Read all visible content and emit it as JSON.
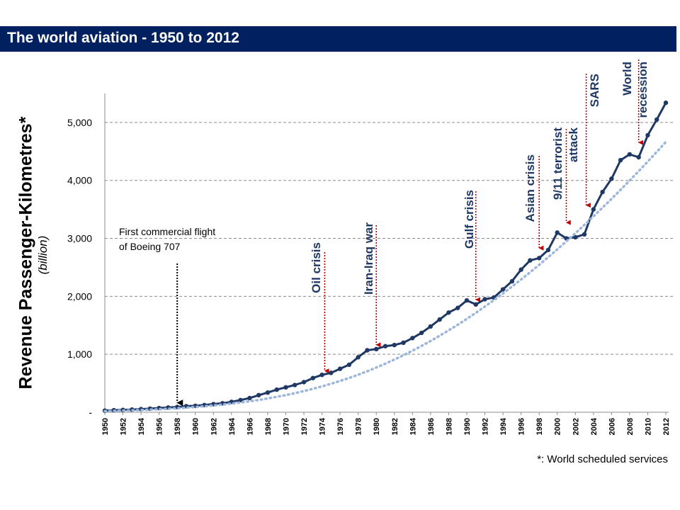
{
  "header": {
    "title": "The world aviation - 1950 to 2012"
  },
  "footnote": "*: World scheduled services",
  "colors": {
    "title_bg": "#002060",
    "title_text": "#ffffff",
    "line": "#1f3864",
    "trend": "#9db6dc",
    "event_arrow": "#c00000",
    "boeing_arrow": "#000000",
    "grid": "#8c8c8c"
  },
  "chart_data": {
    "type": "line",
    "title": "The world aviation - 1950 to 2012",
    "ylabel": "Revenue Passenger-Kilometres*",
    "ylabel_sub": "(billion)",
    "xlabel": "",
    "ylim": [
      0,
      5500
    ],
    "yticks": [
      0,
      1000,
      2000,
      3000,
      4000,
      5000
    ],
    "ytick_labels": [
      "-",
      "1,000",
      "2,000",
      "3,000",
      "4,000",
      "5,000"
    ],
    "x": [
      1950,
      1951,
      1952,
      1953,
      1954,
      1955,
      1956,
      1957,
      1958,
      1959,
      1960,
      1961,
      1962,
      1963,
      1964,
      1965,
      1966,
      1967,
      1968,
      1969,
      1970,
      1971,
      1972,
      1973,
      1974,
      1975,
      1976,
      1977,
      1978,
      1979,
      1980,
      1981,
      1982,
      1983,
      1984,
      1985,
      1986,
      1987,
      1988,
      1989,
      1990,
      1991,
      1992,
      1993,
      1994,
      1995,
      1996,
      1997,
      1998,
      1999,
      2000,
      2001,
      2002,
      2003,
      2004,
      2005,
      2006,
      2007,
      2008,
      2009,
      2010,
      2011,
      2012
    ],
    "xtick_labels": [
      "1950",
      "1952",
      "1954",
      "1956",
      "1958",
      "1960",
      "1962",
      "1964",
      "1966",
      "1968",
      "1970",
      "1972",
      "1974",
      "1976",
      "1978",
      "1980",
      "1982",
      "1984",
      "1986",
      "1988",
      "1990",
      "1992",
      "1994",
      "1996",
      "1998",
      "2000",
      "2002",
      "2004",
      "2006",
      "2008",
      "2010",
      "2012"
    ],
    "series": [
      {
        "style": "solid",
        "values": [
          28,
          35,
          40,
          46,
          54,
          62,
          72,
          82,
          90,
          105,
          110,
          125,
          140,
          155,
          180,
          210,
          245,
          295,
          340,
          390,
          430,
          470,
          520,
          590,
          645,
          680,
          750,
          820,
          950,
          1070,
          1090,
          1140,
          1160,
          1200,
          1280,
          1370,
          1480,
          1600,
          1720,
          1800,
          1930,
          1860,
          1950,
          1980,
          2120,
          2260,
          2460,
          2620,
          2660,
          2800,
          3100,
          3000,
          3020,
          3070,
          3500,
          3800,
          4030,
          4350,
          4450,
          4400,
          4780,
          5050,
          5340
        ]
      },
      {
        "style": "dotted-trend",
        "values": [
          20,
          24,
          28,
          33,
          39,
          45,
          52,
          60,
          69,
          79,
          90,
          103,
          117,
          132,
          149,
          168,
          189,
          212,
          238,
          266,
          296,
          329,
          365,
          404,
          446,
          491,
          540,
          592,
          648,
          708,
          771,
          838,
          909,
          983,
          1062,
          1144,
          1230,
          1320,
          1413,
          1510,
          1611,
          1715,
          1823,
          1935,
          2050,
          2168,
          2290,
          2415,
          2543,
          2675,
          2810,
          2948,
          3089,
          3233,
          3380,
          3530,
          3683,
          3839,
          3998,
          4160,
          4325,
          4493,
          4664
        ]
      }
    ],
    "annotations": [
      {
        "text": [
          "First commercial flight",
          "of Boeing 707"
        ],
        "x": 1958,
        "y": 90,
        "style": "black-dotted-arrow"
      },
      {
        "text": [
          "Oil crisis"
        ],
        "x": 1974.3,
        "y": 640,
        "style": "red-dotted-arrow"
      },
      {
        "text": [
          "Iran-Iraq war"
        ],
        "x": 1980,
        "y": 1090,
        "style": "red-dotted-arrow"
      },
      {
        "text": [
          "Gulf crisis"
        ],
        "x": 1991,
        "y": 1870,
        "style": "red-dotted-arrow"
      },
      {
        "text": [
          "Asian crisis"
        ],
        "x": 1998,
        "y": 2760,
        "style": "red-dotted-arrow"
      },
      {
        "text": [
          "9/11 terrorist",
          "attack"
        ],
        "x": 2001,
        "y": 3200,
        "style": "red-dotted-arrow"
      },
      {
        "text": [
          "SARS"
        ],
        "x": 2003.2,
        "y": 3500,
        "style": "red-dotted-arrow"
      },
      {
        "text": [
          "World",
          "recession"
        ],
        "x": 2009,
        "y": 4580,
        "style": "red-dotted-arrow"
      }
    ]
  }
}
